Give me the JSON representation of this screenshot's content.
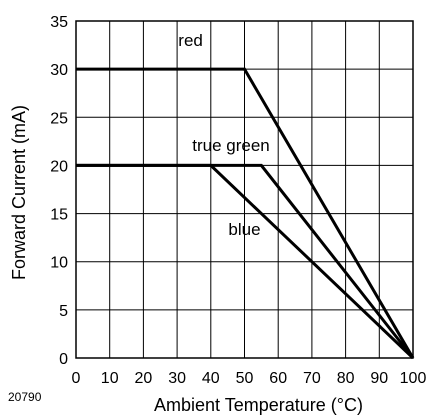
{
  "chart_data": {
    "type": "line",
    "title": "",
    "xlabel": "Ambient Temperature (°C)",
    "ylabel": "Forward Current (mA)",
    "xlim": [
      0,
      100
    ],
    "ylim": [
      0,
      35
    ],
    "x_ticks": [
      "0",
      "10",
      "20",
      "30",
      "40",
      "50",
      "60",
      "70",
      "80",
      "90",
      "100"
    ],
    "y_ticks": [
      "0",
      "5",
      "10",
      "15",
      "20",
      "25",
      "30",
      "35"
    ],
    "grid": true,
    "series": [
      {
        "name": "red",
        "points": [
          {
            "x": 0,
            "y": 30
          },
          {
            "x": 50,
            "y": 30
          },
          {
            "x": 100,
            "y": 0
          }
        ]
      },
      {
        "name": "true green",
        "points": [
          {
            "x": 0,
            "y": 20
          },
          {
            "x": 55,
            "y": 20
          },
          {
            "x": 100,
            "y": 0
          }
        ]
      },
      {
        "name": "blue",
        "points": [
          {
            "x": 0,
            "y": 20
          },
          {
            "x": 40,
            "y": 20
          },
          {
            "x": 100,
            "y": 0
          }
        ]
      }
    ],
    "figure_code": "20790",
    "line_color": "#000000",
    "grid_color": "#000000"
  }
}
